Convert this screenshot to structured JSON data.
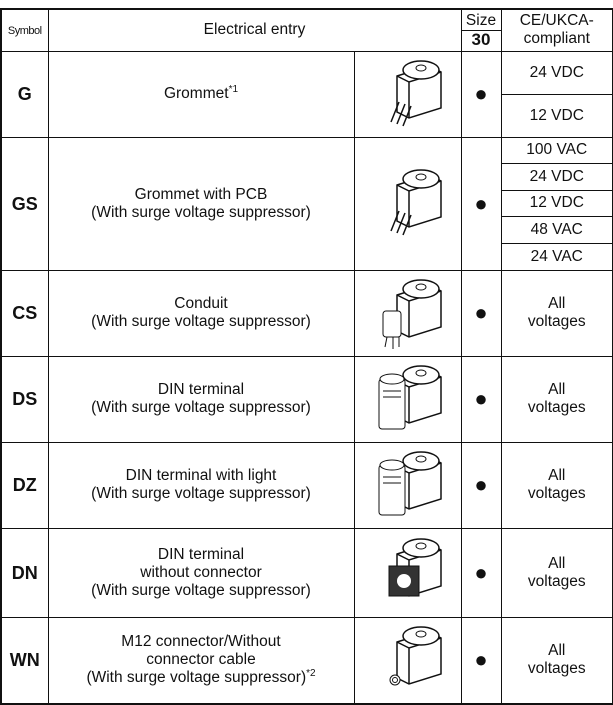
{
  "header": {
    "symbol": "Symbol",
    "entry": "Electrical entry",
    "size_label": "Size",
    "size": "30",
    "compliance": "CE/UKCA-\ncompliant"
  },
  "rows": [
    {
      "symbol": "G",
      "entry": "Grommet",
      "note": "*1",
      "size_mark": "●",
      "voltages": [
        "24 VDC",
        "12 VDC"
      ]
    },
    {
      "symbol": "GS",
      "entry": "Grommet with PCB\n(With surge voltage suppressor)",
      "size_mark": "●",
      "voltages": [
        "100 VAC",
        "24 VDC",
        "12 VDC",
        "48 VAC",
        "24 VAC"
      ]
    },
    {
      "symbol": "CS",
      "entry": "Conduit\n(With surge voltage suppressor)",
      "size_mark": "●",
      "voltages": [
        "All\nvoltages"
      ]
    },
    {
      "symbol": "DS",
      "entry": "DIN terminal\n(With surge voltage suppressor)",
      "size_mark": "●",
      "voltages": [
        "All\nvoltages"
      ]
    },
    {
      "symbol": "DZ",
      "entry": "DIN terminal with light\n(With surge voltage suppressor)",
      "size_mark": "●",
      "voltages": [
        "All\nvoltages"
      ]
    },
    {
      "symbol": "DN",
      "entry": "DIN terminal\nwithout connector\n(With surge voltage suppressor)",
      "size_mark": "●",
      "voltages": [
        "All\nvoltages"
      ]
    },
    {
      "symbol": "WN",
      "entry": "M12 connector/Without\nconnector cable\n(With surge voltage suppressor)",
      "note": "*2",
      "size_mark": "●",
      "voltages": [
        "All\nvoltages"
      ]
    }
  ]
}
